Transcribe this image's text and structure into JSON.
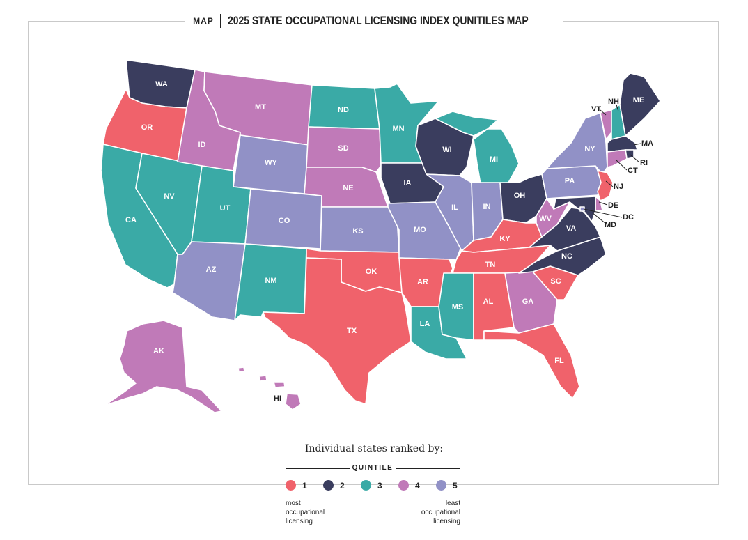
{
  "header": {
    "tag": "MAP",
    "title": "2025 STATE OCCUPATIONAL LICENSING INDEX QUNITILES MAP"
  },
  "legend": {
    "title": "Individual states ranked by:",
    "label": "QUINTILE",
    "items": [
      {
        "label": "1",
        "color": "#f0626b"
      },
      {
        "label": "2",
        "color": "#3a3d5e"
      },
      {
        "label": "3",
        "color": "#3aaaa6"
      },
      {
        "label": "4",
        "color": "#c07ab8"
      },
      {
        "label": "5",
        "color": "#9191c6"
      }
    ],
    "low_note": "most occupational licensing",
    "high_note": "least occupational licensing"
  },
  "states": {
    "WA": 2,
    "OR": 1,
    "CA": 3,
    "NV": 3,
    "ID": 4,
    "MT": 4,
    "WY": 5,
    "UT": 3,
    "AZ": 5,
    "NM": 3,
    "CO": 5,
    "ND": 3,
    "SD": 4,
    "NE": 4,
    "KS": 5,
    "OK": 1,
    "TX": 1,
    "MN": 3,
    "IA": 2,
    "MO": 5,
    "AR": 1,
    "LA": 3,
    "WI": 2,
    "IL": 5,
    "MI": 3,
    "IN": 5,
    "OH": 2,
    "KY": 1,
    "TN": 1,
    "MS": 3,
    "AL": 1,
    "GA": 4,
    "FL": 1,
    "SC": 1,
    "NC": 2,
    "VA": 2,
    "WV": 4,
    "PA": 5,
    "NY": 5,
    "VT": 4,
    "NH": 3,
    "ME": 2,
    "MA": 2,
    "RI": 2,
    "CT": 4,
    "NJ": 1,
    "DE": 4,
    "MD": 2,
    "DC": 5,
    "AK": 4,
    "HI": 4
  }
}
